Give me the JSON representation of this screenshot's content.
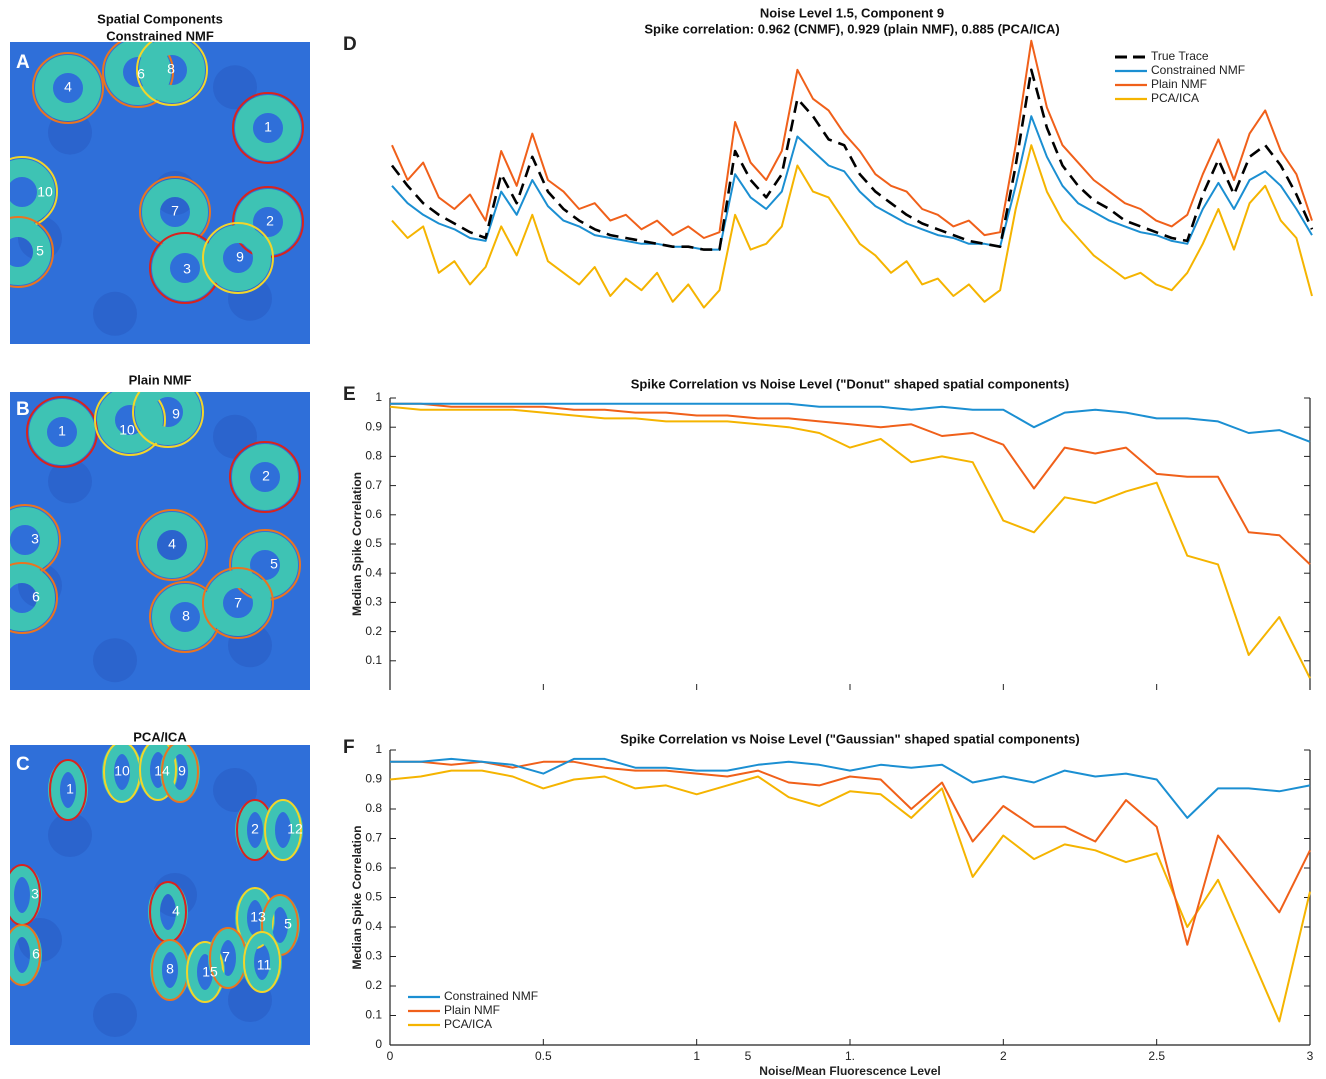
{
  "figure": {
    "panels": [
      {
        "letter": "A",
        "title": [
          "Spatial Components",
          "Constrained NMF"
        ],
        "labels": [
          "4",
          "6",
          "8",
          "1",
          "10",
          "7",
          "2",
          "5",
          "3",
          "9"
        ]
      },
      {
        "letter": "B",
        "title": [
          "Plain NMF"
        ],
        "labels": [
          "1",
          "10",
          "9",
          "2",
          "3",
          "6",
          "4",
          "5",
          "8",
          "7"
        ]
      },
      {
        "letter": "C",
        "title": [
          "PCA/ICA"
        ],
        "labels": [
          "1",
          "10",
          "14",
          "9",
          "2",
          "12",
          "3",
          "6",
          "4",
          "13",
          "5",
          "8",
          "15",
          "7",
          "11"
        ]
      }
    ]
  },
  "chart_data": [
    {
      "panel": "D",
      "type": "line",
      "title": [
        "Noise Level 1.5, Component 9",
        "Spike correlation: 0.962 (CNMF), 0.929 (plain NMF), 0.885 (PCA/ICA)"
      ],
      "ylim": [
        0,
        100
      ],
      "legend": "upper right",
      "series": [
        {
          "name": "True Trace",
          "color": "#000000",
          "dash": true,
          "values": [
            55,
            48,
            42,
            38,
            35,
            32,
            30,
            52,
            42,
            58,
            46,
            40,
            36,
            33,
            31,
            30,
            29,
            28,
            27,
            27,
            26,
            26,
            60,
            50,
            44,
            52,
            78,
            72,
            64,
            62,
            52,
            46,
            42,
            38,
            35,
            33,
            31,
            29,
            28,
            27,
            55,
            88,
            68,
            55,
            48,
            43,
            40,
            36,
            34,
            32,
            30,
            29,
            45,
            57,
            45,
            58,
            62,
            55,
            45,
            33
          ]
        },
        {
          "name": "Constrained NMF",
          "color": "#1b8fd2",
          "values": [
            48,
            42,
            38,
            35,
            33,
            30,
            29,
            46,
            38,
            50,
            41,
            36,
            34,
            31,
            30,
            29,
            28,
            28,
            27,
            27,
            26,
            26,
            52,
            44,
            40,
            46,
            65,
            60,
            55,
            53,
            46,
            41,
            38,
            35,
            33,
            31,
            30,
            28,
            28,
            27,
            48,
            72,
            58,
            48,
            42,
            39,
            36,
            34,
            32,
            31,
            29,
            28,
            40,
            49,
            40,
            50,
            53,
            48,
            40,
            31
          ]
        },
        {
          "name": "Plain NMF",
          "color": "#f0601a",
          "values": [
            62,
            50,
            56,
            44,
            40,
            45,
            36,
            60,
            48,
            66,
            50,
            46,
            40,
            42,
            36,
            38,
            33,
            36,
            31,
            34,
            30,
            32,
            70,
            56,
            50,
            60,
            88,
            78,
            74,
            66,
            60,
            52,
            48,
            46,
            40,
            38,
            34,
            36,
            31,
            32,
            62,
            98,
            75,
            62,
            56,
            50,
            46,
            42,
            40,
            36,
            34,
            38,
            52,
            64,
            50,
            66,
            74,
            60,
            52,
            36
          ]
        },
        {
          "name": "PCA/ICA",
          "color": "#f5b400",
          "values": [
            36,
            30,
            34,
            18,
            22,
            14,
            20,
            34,
            24,
            38,
            22,
            18,
            14,
            20,
            10,
            16,
            12,
            18,
            8,
            14,
            6,
            12,
            38,
            26,
            28,
            34,
            55,
            46,
            44,
            36,
            28,
            24,
            18,
            22,
            14,
            16,
            10,
            14,
            8,
            12,
            40,
            62,
            46,
            36,
            30,
            24,
            20,
            16,
            18,
            14,
            12,
            18,
            28,
            40,
            26,
            42,
            48,
            36,
            30,
            10
          ]
        }
      ]
    },
    {
      "panel": "E",
      "type": "line",
      "title": "Spike Correlation vs Noise Level (\"Donut\" shaped spatial components)",
      "y_label": "Median Spike Correlation",
      "x": [
        0,
        0.1,
        0.2,
        0.3,
        0.4,
        0.5,
        0.6,
        0.7,
        0.8,
        0.9,
        1,
        1.1,
        1.2,
        1.3,
        1.4,
        1.5,
        1.6,
        1.7,
        1.8,
        1.9,
        2,
        2.1,
        2.2,
        2.3,
        2.4,
        2.5,
        2.6,
        2.7,
        2.8,
        2.9,
        3
      ],
      "xlim": [
        0,
        3
      ],
      "ylim": [
        0,
        1
      ],
      "xticks": [
        0,
        0.5,
        1,
        1.5,
        2,
        2.5,
        3
      ],
      "show_xtick_labels": false,
      "yticks": [
        0.1,
        0.2,
        0.3,
        0.4,
        0.5,
        0.6,
        0.7,
        0.8,
        0.9,
        1
      ],
      "series": [
        {
          "color": "#1b8fd2",
          "values": [
            0.98,
            0.98,
            0.98,
            0.98,
            0.98,
            0.98,
            0.98,
            0.98,
            0.98,
            0.98,
            0.98,
            0.98,
            0.98,
            0.98,
            0.97,
            0.97,
            0.97,
            0.96,
            0.97,
            0.96,
            0.96,
            0.9,
            0.95,
            0.96,
            0.95,
            0.93,
            0.93,
            0.92,
            0.88,
            0.89,
            0.85
          ]
        },
        {
          "color": "#f0601a",
          "values": [
            0.98,
            0.98,
            0.97,
            0.97,
            0.97,
            0.97,
            0.96,
            0.96,
            0.95,
            0.95,
            0.94,
            0.94,
            0.93,
            0.93,
            0.92,
            0.91,
            0.9,
            0.91,
            0.87,
            0.88,
            0.84,
            0.69,
            0.83,
            0.81,
            0.83,
            0.74,
            0.73,
            0.73,
            0.54,
            0.53,
            0.43
          ]
        },
        {
          "color": "#f5b400",
          "values": [
            0.97,
            0.96,
            0.96,
            0.96,
            0.96,
            0.95,
            0.94,
            0.93,
            0.93,
            0.92,
            0.92,
            0.92,
            0.91,
            0.9,
            0.88,
            0.83,
            0.86,
            0.78,
            0.8,
            0.78,
            0.58,
            0.54,
            0.66,
            0.64,
            0.68,
            0.71,
            0.46,
            0.43,
            0.12,
            0.25,
            0.04
          ]
        }
      ]
    },
    {
      "panel": "F",
      "type": "line",
      "title": "Spike Correlation vs Noise Level (\"Gaussian\" shaped spatial components)",
      "y_label": "Median Spike Correlation",
      "x_label": "Noise/Mean Fluorescence Level",
      "x": [
        0,
        0.1,
        0.2,
        0.3,
        0.4,
        0.5,
        0.6,
        0.7,
        0.8,
        0.9,
        1,
        1.1,
        1.2,
        1.3,
        1.4,
        1.5,
        1.6,
        1.7,
        1.8,
        1.9,
        2,
        2.1,
        2.2,
        2.3,
        2.4,
        2.5,
        2.6,
        2.7,
        2.8,
        2.9,
        3
      ],
      "xlim": [
        0,
        3
      ],
      "ylim": [
        0,
        1
      ],
      "xticks": [
        0,
        0.5,
        1,
        {
          "value": 1.5,
          "label": "1."
        },
        2,
        2.5,
        3
      ],
      "show_xtick_labels": true,
      "xtick_fragments": [
        "5"
      ],
      "yticks": [
        0,
        0.1,
        0.2,
        0.3,
        0.4,
        0.5,
        0.6,
        0.7,
        0.8,
        0.9,
        1
      ],
      "legend": "lower left",
      "series": [
        {
          "name": "Constrained NMF",
          "color": "#1b8fd2",
          "values": [
            0.96,
            0.96,
            0.97,
            0.96,
            0.95,
            0.92,
            0.97,
            0.97,
            0.94,
            0.94,
            0.93,
            0.93,
            0.95,
            0.96,
            0.95,
            0.93,
            0.95,
            0.94,
            0.95,
            0.89,
            0.91,
            0.89,
            0.93,
            0.91,
            0.92,
            0.9,
            0.77,
            0.87,
            0.87,
            0.86,
            0.88
          ]
        },
        {
          "name": "Plain NMF",
          "color": "#f0601a",
          "values": [
            0.96,
            0.96,
            0.95,
            0.96,
            0.94,
            0.96,
            0.96,
            0.94,
            0.93,
            0.93,
            0.92,
            0.91,
            0.93,
            0.89,
            0.88,
            0.91,
            0.9,
            0.8,
            0.89,
            0.69,
            0.81,
            0.74,
            0.74,
            0.69,
            0.83,
            0.74,
            0.34,
            0.71,
            0.58,
            0.45,
            0.66
          ]
        },
        {
          "name": "PCA/ICA",
          "color": "#f5b400",
          "values": [
            0.9,
            0.91,
            0.93,
            0.93,
            0.91,
            0.87,
            0.9,
            0.91,
            0.87,
            0.88,
            0.85,
            0.88,
            0.91,
            0.84,
            0.81,
            0.86,
            0.85,
            0.77,
            0.87,
            0.57,
            0.71,
            0.63,
            0.68,
            0.66,
            0.62,
            0.65,
            0.4,
            0.56,
            0.32,
            0.08,
            0.52
          ]
        }
      ]
    }
  ]
}
